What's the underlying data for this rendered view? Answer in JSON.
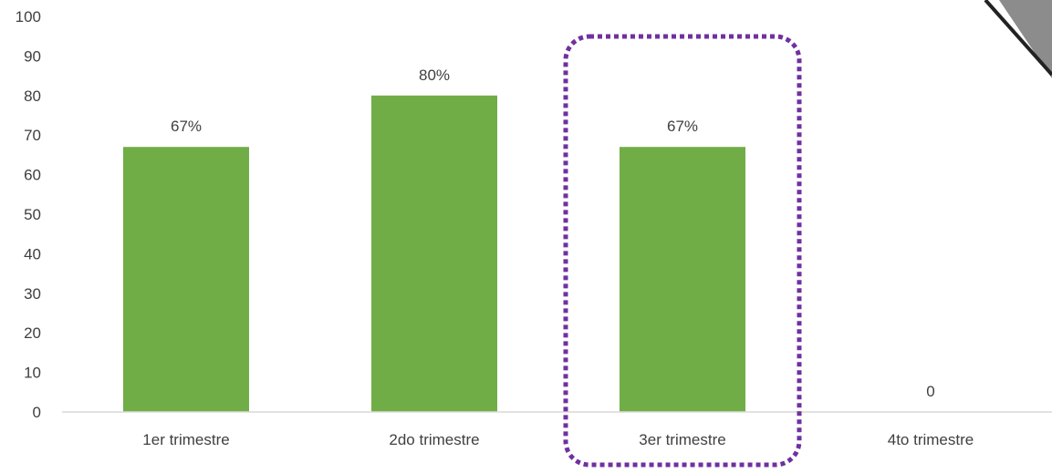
{
  "chart_data": {
    "type": "bar",
    "categories": [
      "1er trimestre",
      "2do trimestre",
      "3er trimestre",
      "4to trimestre"
    ],
    "values": [
      67,
      80,
      67,
      0
    ],
    "data_labels": [
      "67%",
      "80%",
      "67%",
      "0"
    ],
    "yticks": [
      "0",
      "10",
      "20",
      "30",
      "40",
      "50",
      "60",
      "70",
      "80",
      "90",
      "100"
    ],
    "ylim": [
      0,
      100
    ],
    "grid": false,
    "highlighted_category": "3er trimestre",
    "colors": {
      "bar": "#70ad47",
      "highlight_border": "#7030a0",
      "axis": "#d9d9d9",
      "text": "#404040"
    }
  }
}
